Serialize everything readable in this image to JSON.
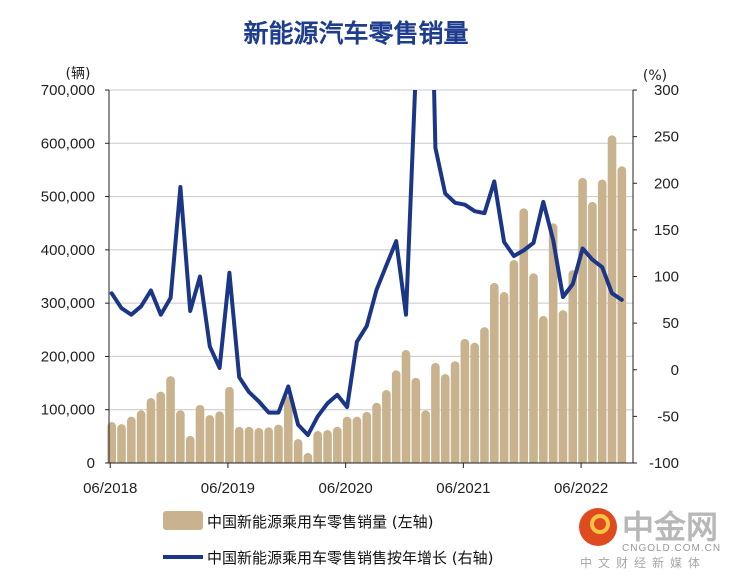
{
  "chart_data": {
    "type": "bar+line",
    "title": "新能源汽车零售销量",
    "left_axis": {
      "unit_label": "(辆)",
      "ylim": [
        0,
        700000
      ],
      "ticks": [
        "0",
        "100,000",
        "200,000",
        "300,000",
        "400,000",
        "500,000",
        "600,000",
        "700,000"
      ],
      "tick_values": [
        0,
        100000,
        200000,
        300000,
        400000,
        500000,
        600000,
        700000
      ]
    },
    "right_axis": {
      "unit_label": "(%)",
      "ylim": [
        -100,
        300
      ],
      "ticks": [
        "-100",
        "-50",
        "0",
        "50",
        "100",
        "150",
        "200",
        "250",
        "300"
      ],
      "tick_values": [
        -100,
        -50,
        0,
        50,
        100,
        150,
        200,
        250,
        300
      ]
    },
    "x_start": "06/2018",
    "x_end": "10/2022",
    "x_tick_labels": [
      "06/2018",
      "06/2019",
      "06/2020",
      "06/2021",
      "06/2022"
    ],
    "grid": "horizontal",
    "legend_placement": "bottom",
    "series": [
      {
        "name": "中国新能源乘用车零售销量 (左轴)",
        "type": "bar",
        "axis": "left",
        "color": "#c9b38f",
        "values": [
          77000,
          73000,
          87000,
          99000,
          122000,
          134000,
          163000,
          99000,
          51000,
          109000,
          90000,
          97000,
          143000,
          68000,
          68000,
          66000,
          67000,
          72000,
          125000,
          45000,
          19000,
          60000,
          62000,
          68000,
          87000,
          87000,
          96000,
          113000,
          137000,
          174000,
          212000,
          160000,
          99000,
          188000,
          167000,
          191000,
          233000,
          226000,
          255000,
          338000,
          321000,
          381000,
          478000,
          356000,
          276000,
          450000,
          287000,
          362000,
          535000,
          490000,
          532000,
          615000,
          557000
        ]
      },
      {
        "name": "中国新能源乘用车零售销售按年增长 (右轴)",
        "type": "line",
        "axis": "right",
        "color": "#1c3687",
        "values": [
          82,
          66,
          59,
          68,
          85,
          59,
          77,
          196,
          63,
          100,
          25,
          2,
          104,
          -8,
          -24,
          -34,
          -46,
          -46,
          -18,
          -59,
          -70,
          -50,
          -36,
          -27,
          -40,
          30,
          47,
          86,
          112,
          138,
          59,
          320,
          700,
          238,
          189,
          179,
          177,
          170,
          168,
          202,
          137,
          122,
          128,
          136,
          180,
          139,
          78,
          92,
          130,
          118,
          110,
          82,
          75
        ]
      }
    ]
  },
  "watermark": {
    "brand": "中金网",
    "domain": "CNGOLD.COM.CN",
    "tagline": "中文财经新媒体"
  }
}
